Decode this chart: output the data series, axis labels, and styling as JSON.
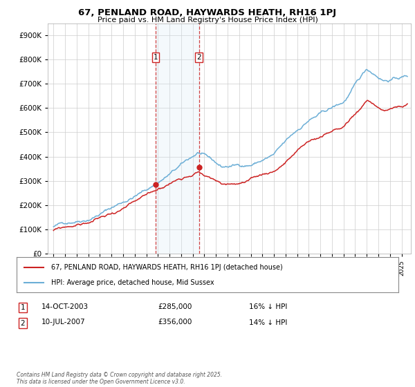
{
  "title": "67, PENLAND ROAD, HAYWARDS HEATH, RH16 1PJ",
  "subtitle": "Price paid vs. HM Land Registry's House Price Index (HPI)",
  "legend_line1": "67, PENLAND ROAD, HAYWARDS HEATH, RH16 1PJ (detached house)",
  "legend_line2": "HPI: Average price, detached house, Mid Sussex",
  "transaction1_date": "14-OCT-2003",
  "transaction1_price": "£285,000",
  "transaction1_hpi": "16% ↓ HPI",
  "transaction1_year": 2003.79,
  "transaction1_price_val": 285000,
  "transaction2_date": "10-JUL-2007",
  "transaction2_price": "£356,000",
  "transaction2_hpi": "14% ↓ HPI",
  "transaction2_year": 2007.53,
  "transaction2_price_val": 356000,
  "footnote": "Contains HM Land Registry data © Crown copyright and database right 2025.\nThis data is licensed under the Open Government Licence v3.0.",
  "hpi_color": "#6baed6",
  "price_color": "#cc2222",
  "background_color": "#ffffff",
  "grid_color": "#cccccc",
  "highlight_color": "#d6e8f5",
  "ylim": [
    0,
    950000
  ],
  "yticks": [
    0,
    100000,
    200000,
    300000,
    400000,
    500000,
    600000,
    700000,
    800000,
    900000
  ],
  "xlim_start": 1994.5,
  "xlim_end": 2025.8
}
